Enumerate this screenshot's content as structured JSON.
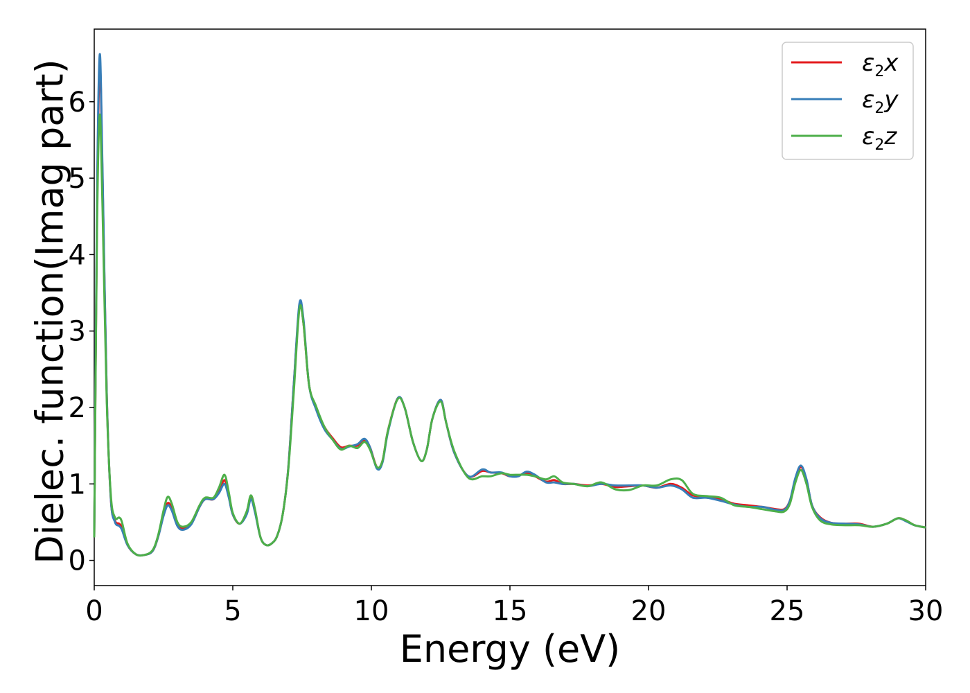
{
  "chart_data": {
    "type": "line",
    "title": "",
    "xlabel": "Energy (eV)",
    "ylabel": "Dielec. function(Imag part)",
    "xlim": [
      0,
      30
    ],
    "ylim": [
      -0.33,
      6.95
    ],
    "xticks": [
      0,
      5,
      10,
      15,
      20,
      25,
      30
    ],
    "yticks": [
      0,
      1,
      2,
      3,
      4,
      5,
      6
    ],
    "grid": false,
    "legend_position": "top-right",
    "series": [
      {
        "name": "ε2x",
        "legend_main": "ε",
        "legend_sub": "2",
        "legend_suffix": "x",
        "color": "#e41a1c",
        "points": [
          [
            0,
            0.3
          ],
          [
            0.1,
            4.5
          ],
          [
            0.2,
            6.5
          ],
          [
            0.3,
            5.0
          ],
          [
            0.45,
            2.2
          ],
          [
            0.6,
            0.8
          ],
          [
            0.75,
            0.52
          ],
          [
            0.9,
            0.48
          ],
          [
            1.0,
            0.43
          ],
          [
            1.2,
            0.2
          ],
          [
            1.5,
            0.08
          ],
          [
            1.8,
            0.07
          ],
          [
            2.1,
            0.12
          ],
          [
            2.3,
            0.3
          ],
          [
            2.5,
            0.6
          ],
          [
            2.65,
            0.75
          ],
          [
            2.8,
            0.68
          ],
          [
            3.0,
            0.47
          ],
          [
            3.2,
            0.42
          ],
          [
            3.5,
            0.48
          ],
          [
            3.8,
            0.7
          ],
          [
            4.0,
            0.8
          ],
          [
            4.3,
            0.8
          ],
          [
            4.5,
            0.9
          ],
          [
            4.7,
            1.05
          ],
          [
            4.85,
            0.85
          ],
          [
            5.0,
            0.6
          ],
          [
            5.25,
            0.48
          ],
          [
            5.5,
            0.62
          ],
          [
            5.65,
            0.82
          ],
          [
            5.8,
            0.65
          ],
          [
            6.0,
            0.3
          ],
          [
            6.2,
            0.2
          ],
          [
            6.4,
            0.22
          ],
          [
            6.6,
            0.32
          ],
          [
            6.8,
            0.6
          ],
          [
            7.0,
            1.2
          ],
          [
            7.2,
            2.3
          ],
          [
            7.4,
            3.3
          ],
          [
            7.55,
            3.1
          ],
          [
            7.75,
            2.3
          ],
          [
            8.0,
            2.0
          ],
          [
            8.3,
            1.75
          ],
          [
            8.6,
            1.6
          ],
          [
            8.9,
            1.48
          ],
          [
            9.2,
            1.5
          ],
          [
            9.5,
            1.5
          ],
          [
            9.75,
            1.57
          ],
          [
            9.95,
            1.48
          ],
          [
            10.2,
            1.22
          ],
          [
            10.4,
            1.3
          ],
          [
            10.6,
            1.7
          ],
          [
            10.95,
            2.12
          ],
          [
            11.2,
            2.0
          ],
          [
            11.5,
            1.55
          ],
          [
            11.8,
            1.3
          ],
          [
            12.0,
            1.45
          ],
          [
            12.2,
            1.85
          ],
          [
            12.5,
            2.1
          ],
          [
            12.7,
            1.8
          ],
          [
            13.0,
            1.4
          ],
          [
            13.5,
            1.1
          ],
          [
            14.0,
            1.17
          ],
          [
            14.3,
            1.15
          ],
          [
            14.7,
            1.14
          ],
          [
            15.0,
            1.1
          ],
          [
            15.3,
            1.11
          ],
          [
            15.6,
            1.14
          ],
          [
            15.9,
            1.1
          ],
          [
            16.3,
            1.03
          ],
          [
            16.6,
            1.05
          ],
          [
            16.9,
            1.0
          ],
          [
            17.3,
            1.0
          ],
          [
            17.8,
            0.98
          ],
          [
            18.3,
            1.0
          ],
          [
            18.8,
            0.96
          ],
          [
            19.3,
            0.97
          ],
          [
            19.8,
            0.98
          ],
          [
            20.3,
            0.95
          ],
          [
            20.8,
            1.0
          ],
          [
            21.2,
            0.95
          ],
          [
            21.6,
            0.85
          ],
          [
            22.1,
            0.83
          ],
          [
            22.6,
            0.8
          ],
          [
            23.1,
            0.74
          ],
          [
            23.6,
            0.72
          ],
          [
            24.1,
            0.7
          ],
          [
            24.6,
            0.67
          ],
          [
            24.9,
            0.67
          ],
          [
            25.1,
            0.78
          ],
          [
            25.3,
            1.05
          ],
          [
            25.5,
            1.22
          ],
          [
            25.7,
            1.05
          ],
          [
            25.9,
            0.72
          ],
          [
            26.2,
            0.56
          ],
          [
            26.6,
            0.49
          ],
          [
            27.1,
            0.48
          ],
          [
            27.6,
            0.48
          ],
          [
            28.1,
            0.44
          ],
          [
            28.6,
            0.48
          ],
          [
            29.0,
            0.55
          ],
          [
            29.3,
            0.52
          ],
          [
            29.6,
            0.46
          ],
          [
            30,
            0.43
          ]
        ]
      },
      {
        "name": "ε2y",
        "legend_main": "ε",
        "legend_sub": "2",
        "legend_suffix": "y",
        "color": "#377eb8",
        "points": [
          [
            0,
            0.3
          ],
          [
            0.1,
            4.7
          ],
          [
            0.2,
            6.62
          ],
          [
            0.3,
            5.1
          ],
          [
            0.45,
            2.2
          ],
          [
            0.6,
            0.8
          ],
          [
            0.75,
            0.5
          ],
          [
            0.9,
            0.45
          ],
          [
            1.0,
            0.4
          ],
          [
            1.2,
            0.2
          ],
          [
            1.5,
            0.08
          ],
          [
            1.8,
            0.07
          ],
          [
            2.1,
            0.12
          ],
          [
            2.3,
            0.3
          ],
          [
            2.5,
            0.58
          ],
          [
            2.65,
            0.72
          ],
          [
            2.8,
            0.65
          ],
          [
            3.0,
            0.45
          ],
          [
            3.2,
            0.4
          ],
          [
            3.5,
            0.47
          ],
          [
            3.8,
            0.7
          ],
          [
            4.0,
            0.8
          ],
          [
            4.3,
            0.8
          ],
          [
            4.5,
            0.88
          ],
          [
            4.7,
            1.0
          ],
          [
            4.85,
            0.83
          ],
          [
            5.0,
            0.6
          ],
          [
            5.25,
            0.48
          ],
          [
            5.5,
            0.6
          ],
          [
            5.65,
            0.8
          ],
          [
            5.8,
            0.63
          ],
          [
            6.0,
            0.3
          ],
          [
            6.2,
            0.2
          ],
          [
            6.4,
            0.22
          ],
          [
            6.6,
            0.32
          ],
          [
            6.8,
            0.6
          ],
          [
            7.0,
            1.2
          ],
          [
            7.2,
            2.3
          ],
          [
            7.4,
            3.35
          ],
          [
            7.55,
            3.15
          ],
          [
            7.75,
            2.3
          ],
          [
            8.0,
            1.98
          ],
          [
            8.3,
            1.72
          ],
          [
            8.6,
            1.58
          ],
          [
            8.9,
            1.46
          ],
          [
            9.2,
            1.49
          ],
          [
            9.5,
            1.52
          ],
          [
            9.75,
            1.59
          ],
          [
            9.95,
            1.48
          ],
          [
            10.2,
            1.2
          ],
          [
            10.4,
            1.28
          ],
          [
            10.6,
            1.68
          ],
          [
            10.95,
            2.12
          ],
          [
            11.2,
            2.0
          ],
          [
            11.5,
            1.55
          ],
          [
            11.8,
            1.3
          ],
          [
            12.0,
            1.45
          ],
          [
            12.2,
            1.85
          ],
          [
            12.5,
            2.1
          ],
          [
            12.7,
            1.8
          ],
          [
            13.0,
            1.4
          ],
          [
            13.5,
            1.1
          ],
          [
            14.0,
            1.19
          ],
          [
            14.3,
            1.15
          ],
          [
            14.7,
            1.15
          ],
          [
            15.0,
            1.1
          ],
          [
            15.3,
            1.1
          ],
          [
            15.6,
            1.16
          ],
          [
            15.9,
            1.12
          ],
          [
            16.3,
            1.02
          ],
          [
            16.6,
            1.02
          ],
          [
            16.9,
            1.0
          ],
          [
            17.3,
            1.0
          ],
          [
            17.8,
            0.97
          ],
          [
            18.3,
            1.0
          ],
          [
            18.8,
            0.98
          ],
          [
            19.3,
            0.98
          ],
          [
            19.8,
            0.98
          ],
          [
            20.3,
            0.95
          ],
          [
            20.8,
            0.98
          ],
          [
            21.2,
            0.93
          ],
          [
            21.6,
            0.82
          ],
          [
            22.1,
            0.82
          ],
          [
            22.6,
            0.78
          ],
          [
            23.1,
            0.73
          ],
          [
            23.6,
            0.7
          ],
          [
            24.1,
            0.7
          ],
          [
            24.6,
            0.66
          ],
          [
            24.9,
            0.66
          ],
          [
            25.1,
            0.78
          ],
          [
            25.3,
            1.08
          ],
          [
            25.5,
            1.24
          ],
          [
            25.7,
            1.06
          ],
          [
            25.9,
            0.72
          ],
          [
            26.2,
            0.55
          ],
          [
            26.6,
            0.49
          ],
          [
            27.1,
            0.48
          ],
          [
            27.6,
            0.47
          ],
          [
            28.1,
            0.44
          ],
          [
            28.6,
            0.48
          ],
          [
            29.0,
            0.55
          ],
          [
            29.3,
            0.51
          ],
          [
            29.6,
            0.46
          ],
          [
            30,
            0.43
          ]
        ]
      },
      {
        "name": "ε2z",
        "legend_main": "ε",
        "legend_sub": "2",
        "legend_suffix": "z",
        "color": "#4daf4a",
        "points": [
          [
            0,
            0.3
          ],
          [
            0.1,
            4.3
          ],
          [
            0.2,
            5.83
          ],
          [
            0.3,
            4.6
          ],
          [
            0.45,
            2.1
          ],
          [
            0.6,
            0.85
          ],
          [
            0.75,
            0.56
          ],
          [
            0.9,
            0.56
          ],
          [
            1.0,
            0.5
          ],
          [
            1.2,
            0.22
          ],
          [
            1.5,
            0.08
          ],
          [
            1.8,
            0.07
          ],
          [
            2.1,
            0.13
          ],
          [
            2.3,
            0.32
          ],
          [
            2.5,
            0.65
          ],
          [
            2.65,
            0.83
          ],
          [
            2.8,
            0.74
          ],
          [
            3.0,
            0.5
          ],
          [
            3.2,
            0.44
          ],
          [
            3.5,
            0.5
          ],
          [
            3.8,
            0.72
          ],
          [
            4.0,
            0.82
          ],
          [
            4.3,
            0.82
          ],
          [
            4.5,
            0.95
          ],
          [
            4.7,
            1.12
          ],
          [
            4.85,
            0.9
          ],
          [
            5.0,
            0.62
          ],
          [
            5.25,
            0.48
          ],
          [
            5.5,
            0.64
          ],
          [
            5.65,
            0.85
          ],
          [
            5.8,
            0.67
          ],
          [
            6.0,
            0.3
          ],
          [
            6.2,
            0.2
          ],
          [
            6.4,
            0.22
          ],
          [
            6.6,
            0.32
          ],
          [
            6.8,
            0.6
          ],
          [
            7.0,
            1.18
          ],
          [
            7.2,
            2.2
          ],
          [
            7.4,
            3.28
          ],
          [
            7.55,
            3.1
          ],
          [
            7.75,
            2.3
          ],
          [
            8.0,
            2.02
          ],
          [
            8.3,
            1.75
          ],
          [
            8.6,
            1.58
          ],
          [
            8.9,
            1.45
          ],
          [
            9.2,
            1.5
          ],
          [
            9.5,
            1.47
          ],
          [
            9.75,
            1.55
          ],
          [
            9.95,
            1.45
          ],
          [
            10.2,
            1.22
          ],
          [
            10.4,
            1.3
          ],
          [
            10.6,
            1.7
          ],
          [
            10.95,
            2.11
          ],
          [
            11.2,
            2.0
          ],
          [
            11.5,
            1.55
          ],
          [
            11.8,
            1.3
          ],
          [
            12.0,
            1.45
          ],
          [
            12.2,
            1.85
          ],
          [
            12.5,
            2.08
          ],
          [
            12.7,
            1.8
          ],
          [
            13.0,
            1.42
          ],
          [
            13.5,
            1.08
          ],
          [
            14.0,
            1.1
          ],
          [
            14.3,
            1.1
          ],
          [
            14.7,
            1.14
          ],
          [
            15.0,
            1.12
          ],
          [
            15.3,
            1.12
          ],
          [
            15.6,
            1.12
          ],
          [
            15.9,
            1.1
          ],
          [
            16.3,
            1.06
          ],
          [
            16.6,
            1.1
          ],
          [
            16.9,
            1.02
          ],
          [
            17.3,
            1.0
          ],
          [
            17.8,
            0.97
          ],
          [
            18.3,
            1.02
          ],
          [
            18.8,
            0.93
          ],
          [
            19.3,
            0.92
          ],
          [
            19.8,
            0.98
          ],
          [
            20.3,
            0.98
          ],
          [
            20.8,
            1.06
          ],
          [
            21.2,
            1.05
          ],
          [
            21.6,
            0.87
          ],
          [
            22.1,
            0.84
          ],
          [
            22.6,
            0.82
          ],
          [
            23.1,
            0.72
          ],
          [
            23.6,
            0.7
          ],
          [
            24.1,
            0.67
          ],
          [
            24.6,
            0.64
          ],
          [
            24.9,
            0.64
          ],
          [
            25.1,
            0.74
          ],
          [
            25.3,
            1.02
          ],
          [
            25.5,
            1.18
          ],
          [
            25.7,
            1.0
          ],
          [
            25.9,
            0.7
          ],
          [
            26.2,
            0.52
          ],
          [
            26.6,
            0.47
          ],
          [
            27.1,
            0.46
          ],
          [
            27.6,
            0.46
          ],
          [
            28.1,
            0.44
          ],
          [
            28.6,
            0.48
          ],
          [
            29.0,
            0.55
          ],
          [
            29.3,
            0.52
          ],
          [
            29.6,
            0.46
          ],
          [
            30,
            0.43
          ]
        ]
      }
    ]
  }
}
